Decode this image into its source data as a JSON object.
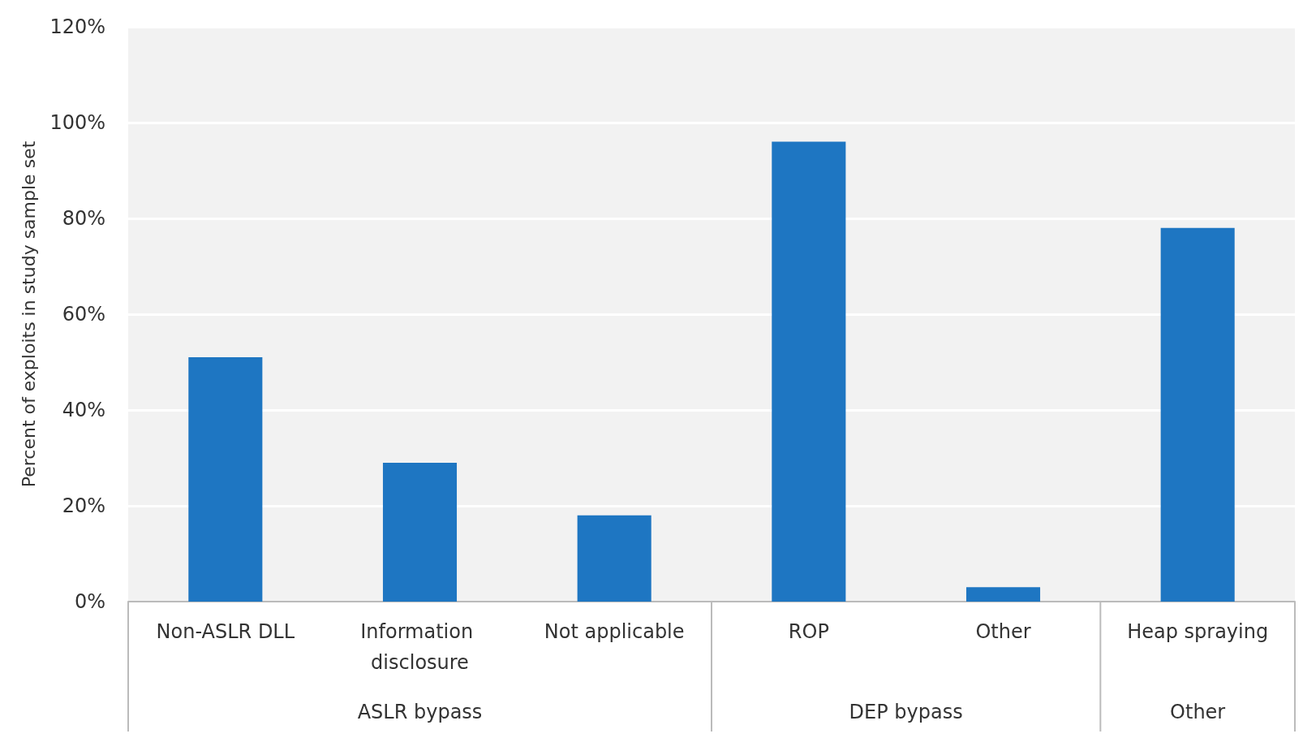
{
  "chart_data": {
    "type": "bar",
    "ylabel": "Percent of exploits in study sample set",
    "categories": [
      "Non-ASLR DLL",
      "Information disclosure",
      "Not applicable",
      "ROP",
      "Other",
      "Heap spraying"
    ],
    "values": [
      51,
      29,
      18,
      96,
      3,
      78
    ],
    "color": "#1e76c2",
    "ylim": [
      0,
      120
    ],
    "yticks": [
      {
        "value": 0,
        "label": "0%"
      },
      {
        "value": 20,
        "label": "20%"
      },
      {
        "value": 40,
        "label": "40%"
      },
      {
        "value": 60,
        "label": "60%"
      },
      {
        "value": 80,
        "label": "80%"
      },
      {
        "value": 100,
        "label": "100%"
      },
      {
        "value": 120,
        "label": "120%"
      }
    ],
    "grid": "y",
    "annotations": [
      "ASLR bypass",
      "DEP bypass",
      "Other"
    ]
  }
}
